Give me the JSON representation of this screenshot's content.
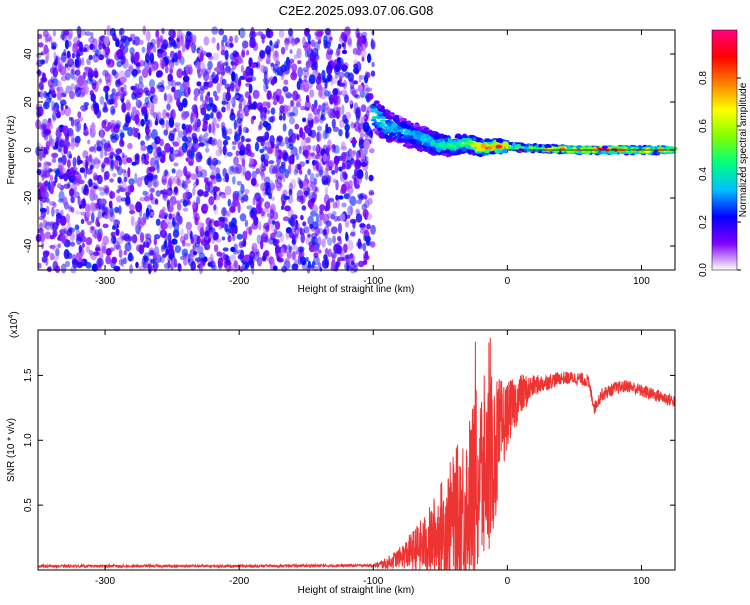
{
  "title": "C2E2.2025.093.07.06.G08",
  "chart_data": [
    {
      "type": "heatmap",
      "title": "C2E2.2025.093.07.06.G08",
      "xlabel": "Height of straight line (km)",
      "ylabel": "Frequency (Hz)",
      "xlim": [
        -350,
        125
      ],
      "ylim": [
        -50,
        50
      ],
      "x_ticks": [
        -300,
        -200,
        -100,
        0,
        100
      ],
      "y_ticks": [
        -40,
        -20,
        0,
        20,
        40
      ],
      "noise_region": {
        "x_range": [
          -350,
          -100
        ],
        "y_range": [
          -50,
          50
        ],
        "amplitude_range": [
          0.05,
          0.25
        ]
      },
      "signal_ridge": [
        {
          "x": -100,
          "y": 15,
          "amp": 0.45
        },
        {
          "x": -90,
          "y": 10,
          "amp": 0.4
        },
        {
          "x": -80,
          "y": 8,
          "amp": 0.35
        },
        {
          "x": -70,
          "y": 6,
          "amp": 0.35
        },
        {
          "x": -60,
          "y": 4,
          "amp": 0.4
        },
        {
          "x": -50,
          "y": 2,
          "amp": 0.45
        },
        {
          "x": -40,
          "y": 2,
          "amp": 0.5
        },
        {
          "x": -30,
          "y": 3,
          "amp": 0.55
        },
        {
          "x": -20,
          "y": 1,
          "amp": 0.85
        },
        {
          "x": -10,
          "y": 1.5,
          "amp": 0.9
        },
        {
          "x": 0,
          "y": 1.5,
          "amp": 0.8
        },
        {
          "x": 10,
          "y": 1,
          "amp": 0.55
        },
        {
          "x": 30,
          "y": 0.5,
          "amp": 0.7
        },
        {
          "x": 50,
          "y": 0,
          "amp": 0.9
        },
        {
          "x": 70,
          "y": 0,
          "amp": 0.95
        },
        {
          "x": 90,
          "y": 0,
          "amp": 0.85
        },
        {
          "x": 110,
          "y": 0,
          "amp": 0.75
        },
        {
          "x": 125,
          "y": 0,
          "amp": 0.7
        }
      ],
      "colorbar": {
        "label": "Normalized spectral amplitude",
        "range": [
          0,
          1
        ],
        "ticks": [
          "0.0",
          "0.2",
          "0.4",
          "0.6",
          "0.8"
        ],
        "tick_values": [
          0,
          0.2,
          0.4,
          0.6,
          0.8
        ],
        "colors": [
          "#ffffff",
          "#7f00ff",
          "#0000ff",
          "#00bfff",
          "#00ff80",
          "#80ff00",
          "#ffff00",
          "#ff8000",
          "#ff0000",
          "#ff0080"
        ]
      }
    },
    {
      "type": "line",
      "xlabel": "Height of straight line (km)",
      "ylabel": "SNR (10 * v/v)",
      "y_multiplier": "(x10",
      "y_multiplier_exp": "4",
      "y_multiplier_close": ")",
      "xlim": [
        -350,
        125
      ],
      "ylim": [
        0,
        1.85
      ],
      "x_ticks": [
        -300,
        -200,
        -100,
        0,
        100
      ],
      "y_ticks": [
        0.5,
        1.0,
        1.5
      ],
      "y_tick_labels": [
        "0.5",
        "1.0",
        "1.5"
      ],
      "color": "#ee3333",
      "envelope_x": [
        -350,
        -200,
        -100,
        -90,
        -80,
        -70,
        -60,
        -50,
        -40,
        -30,
        -20,
        -15,
        -10,
        -5,
        0,
        10,
        20,
        30,
        40,
        50,
        60,
        65,
        70,
        80,
        90,
        100,
        110,
        125
      ],
      "envelope_y": [
        0.03,
        0.03,
        0.035,
        0.05,
        0.1,
        0.15,
        0.2,
        0.3,
        0.4,
        0.5,
        0.7,
        0.8,
        0.9,
        1.05,
        1.2,
        1.35,
        1.42,
        1.45,
        1.48,
        1.48,
        1.46,
        1.25,
        1.35,
        1.4,
        1.42,
        1.38,
        1.35,
        1.3
      ],
      "spread_x": [
        -350,
        -100,
        -80,
        -60,
        -40,
        -20,
        -10,
        0,
        20,
        40,
        125
      ],
      "spread_y": [
        0.01,
        0.01,
        0.08,
        0.25,
        0.5,
        0.8,
        0.6,
        0.25,
        0.08,
        0.05,
        0.05
      ]
    }
  ]
}
